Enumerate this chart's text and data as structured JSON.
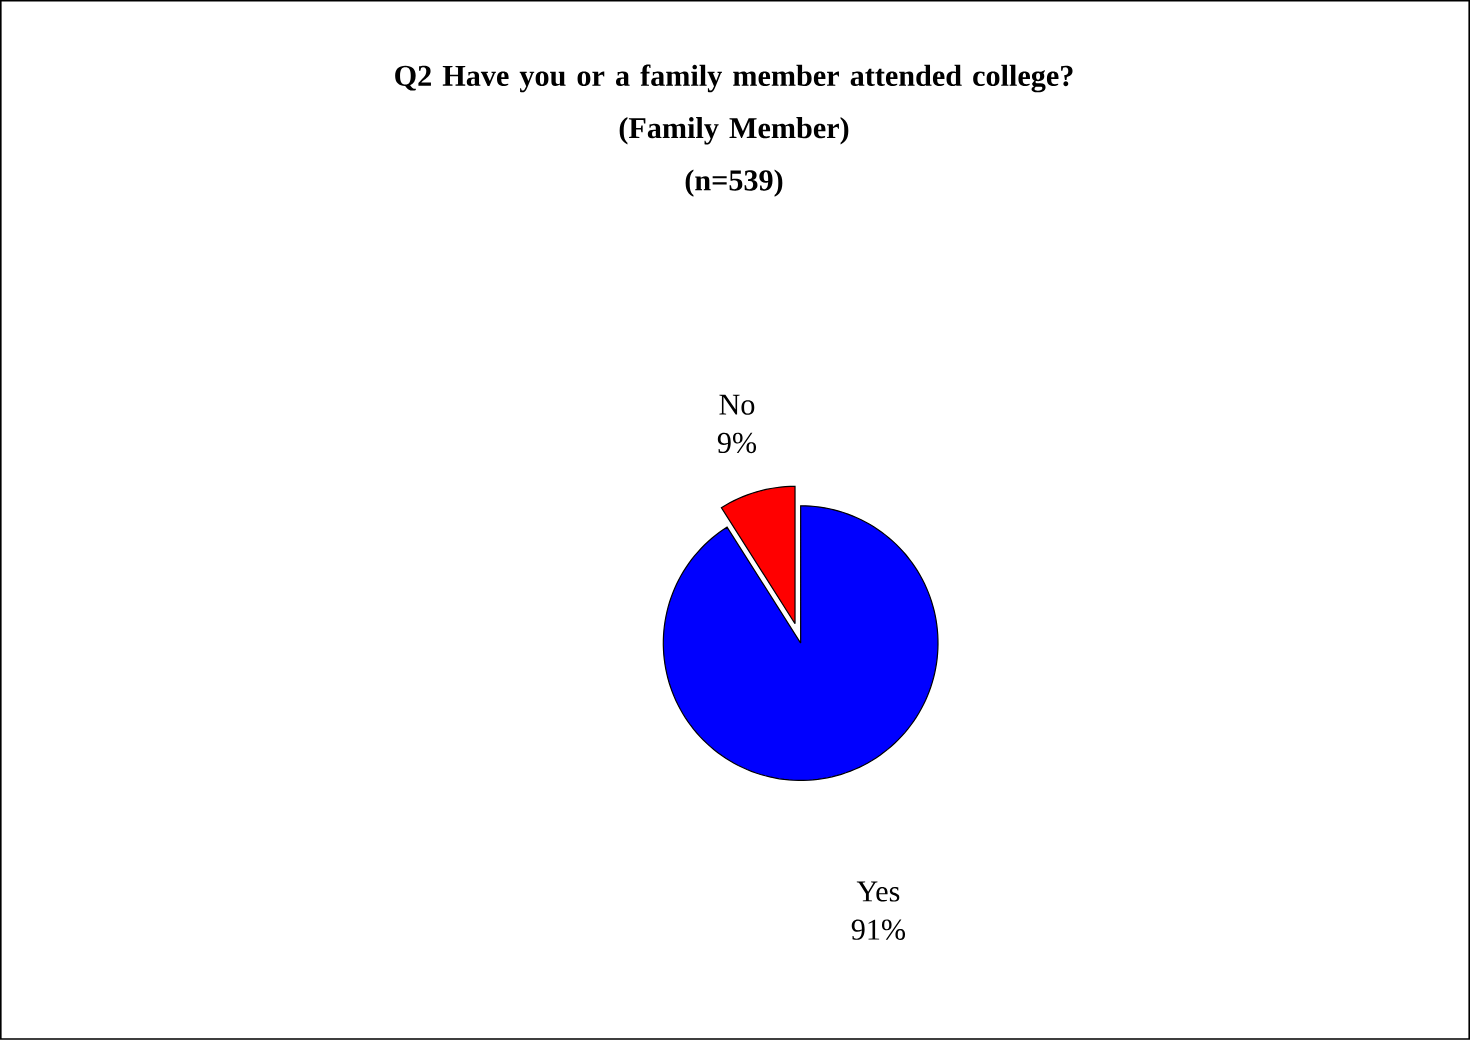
{
  "chart_data": {
    "type": "pie",
    "title": "Q2 Have you or a family member attended college?\n(Family Member)\n(n=539)",
    "categories": [
      "No",
      "Yes"
    ],
    "values": [
      9,
      91
    ],
    "colors": [
      "#ff0000",
      "#0000ff"
    ],
    "value_labels": [
      "9%",
      "91%"
    ]
  }
}
